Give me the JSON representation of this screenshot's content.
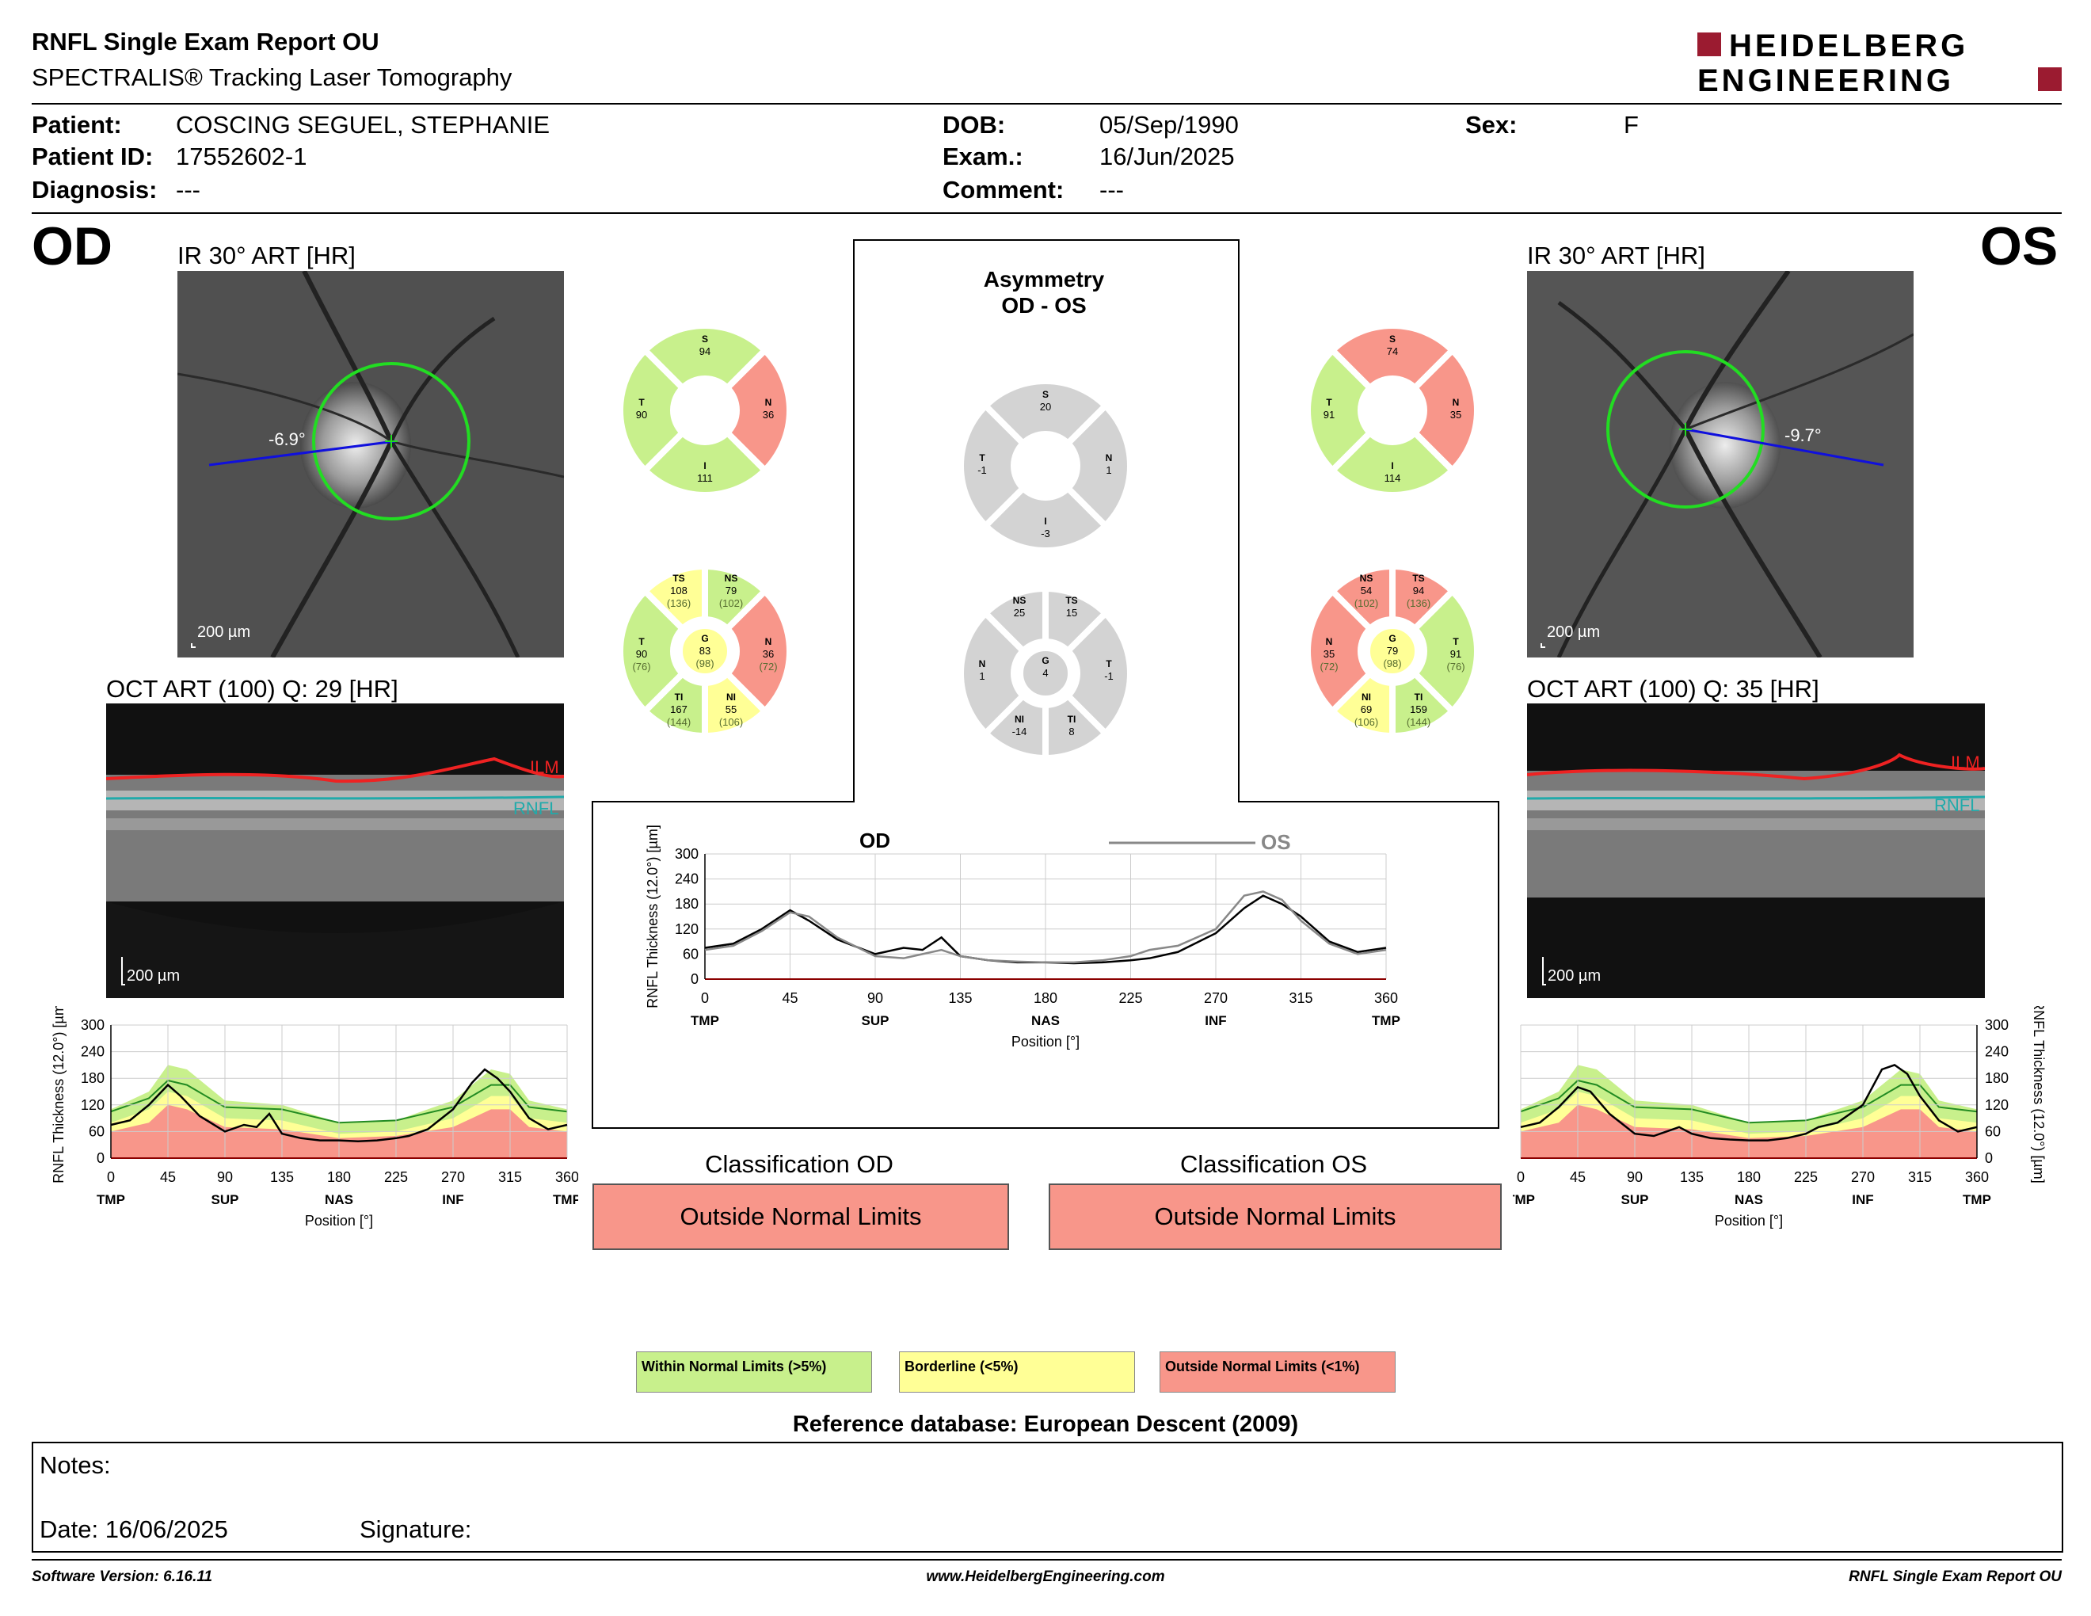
{
  "header": {
    "title": "RNFL Single Exam Report OU",
    "subtitle": "SPECTRALIS® Tracking Laser Tomography",
    "logo_line1": "HEIDELBERG",
    "logo_line2": "ENGINEERING"
  },
  "patient": {
    "patient_label": "Patient:",
    "patient_value": "COSCING SEGUEL, STEPHANIE",
    "id_label": "Patient ID:",
    "id_value": "17552602-1",
    "diagnosis_label": "Diagnosis:",
    "diagnosis_value": "---",
    "dob_label": "DOB:",
    "dob_value": "05/Sep/1990",
    "exam_label": "Exam.:",
    "exam_value": "16/Jun/2025",
    "comment_label": "Comment:",
    "comment_value": "---",
    "sex_label": "Sex:",
    "sex_value": "F"
  },
  "od": {
    "eye": "OD",
    "ir_label": "IR 30° ART [HR]",
    "angle": "-6.9°",
    "scale_ir": "200 µm",
    "oct_label": "OCT ART (100) Q: 29 [HR]",
    "scale_oct": "200 µm",
    "ilm": "ILM",
    "rnfl": "RNFL",
    "sectors4": {
      "S": "94",
      "N": "36",
      "I": "111",
      "T": "90"
    },
    "sectors6": {
      "TS": "108",
      "TS_ref": "(136)",
      "NS": "79",
      "NS_ref": "(102)",
      "N": "36",
      "N_ref": "(72)",
      "NI": "55",
      "NI_ref": "(106)",
      "TI": "167",
      "TI_ref": "(144)",
      "T": "90",
      "T_ref": "(76)",
      "G": "83",
      "G_ref": "(98)"
    },
    "classification_title": "Classification OD",
    "classification": "Outside Normal Limits"
  },
  "os": {
    "eye": "OS",
    "ir_label": "IR 30° ART [HR]",
    "angle": "-9.7°",
    "scale_ir": "200 µm",
    "oct_label": "OCT ART (100) Q: 35 [HR]",
    "scale_oct": "200 µm",
    "ilm": "ILM",
    "rnfl": "RNFL",
    "sectors4": {
      "S": "74",
      "N": "35",
      "I": "114",
      "T": "91"
    },
    "sectors6": {
      "NS": "54",
      "NS_ref": "(102)",
      "TS": "94",
      "TS_ref": "(136)",
      "T": "91",
      "T_ref": "(76)",
      "TI": "159",
      "TI_ref": "(144)",
      "NI": "69",
      "NI_ref": "(106)",
      "N": "35",
      "N_ref": "(72)",
      "G": "79",
      "G_ref": "(98)"
    },
    "classification_title": "Classification OS",
    "classification": "Outside Normal Limits"
  },
  "asymmetry": {
    "title1": "Asymmetry",
    "title2": "OD - OS",
    "sectors4": {
      "S": "20",
      "N": "1",
      "T": "-1",
      "I": "-3"
    },
    "sectors6": {
      "NS": "25",
      "TS": "15",
      "N": "1",
      "G": "4",
      "T": "-1",
      "NI": "-14",
      "TI": "8"
    }
  },
  "colors": {
    "green": "#c8f08c",
    "yellow": "#ffff96",
    "red": "#f8968a",
    "gray": "#d3d3d3"
  },
  "chart_data": [
    {
      "type": "line",
      "title": "",
      "ylabel": "RNFL Thickness (12.0°) [µm]",
      "xlabel": "Position [°]",
      "ylim": [
        0,
        300
      ],
      "xlim": [
        0,
        360
      ],
      "x_ticks": [
        "0",
        "45",
        "90",
        "135",
        "180",
        "225",
        "270",
        "315",
        "360"
      ],
      "y_ticks": [
        "0",
        "60",
        "120",
        "180",
        "240",
        "300"
      ],
      "region_labels": [
        "TMP",
        "SUP",
        "NAS",
        "INF",
        "TMP"
      ],
      "series": [
        {
          "name": "OD",
          "x": [
            0,
            15,
            30,
            45,
            55,
            70,
            90,
            105,
            115,
            125,
            135,
            150,
            165,
            180,
            195,
            210,
            225,
            235,
            250,
            270,
            285,
            295,
            305,
            315,
            330,
            345,
            360
          ],
          "values": [
            75,
            85,
            120,
            165,
            140,
            95,
            60,
            75,
            70,
            100,
            55,
            45,
            40,
            40,
            38,
            40,
            45,
            50,
            65,
            110,
            170,
            200,
            180,
            150,
            90,
            65,
            75
          ]
        },
        {
          "name": "OS",
          "x": [
            0,
            15,
            30,
            45,
            55,
            70,
            90,
            105,
            115,
            125,
            135,
            150,
            165,
            180,
            195,
            210,
            225,
            235,
            250,
            270,
            285,
            295,
            305,
            315,
            330,
            345,
            360
          ],
          "values": [
            70,
            80,
            115,
            160,
            150,
            100,
            55,
            50,
            60,
            70,
            55,
            45,
            42,
            40,
            40,
            45,
            55,
            70,
            80,
            120,
            200,
            210,
            190,
            140,
            85,
            60,
            70
          ]
        }
      ]
    },
    {
      "type": "line",
      "ylabel": "RNFL Thickness (12.0°) [µm]",
      "xlabel": "Position [°]",
      "ylim": [
        0,
        300
      ],
      "xlim": [
        0,
        360
      ],
      "x_ticks": [
        "0",
        "45",
        "90",
        "135",
        "180",
        "225",
        "270",
        "315",
        "360"
      ],
      "y_ticks": [
        "0",
        "60",
        "120",
        "180",
        "240",
        "300"
      ],
      "region_labels": [
        "TMP",
        "SUP",
        "NAS",
        "INF",
        "TMP"
      ],
      "series": [
        {
          "name": "OD",
          "x": [
            0,
            15,
            30,
            45,
            55,
            70,
            90,
            105,
            115,
            125,
            135,
            150,
            165,
            180,
            195,
            210,
            225,
            235,
            250,
            270,
            285,
            295,
            305,
            315,
            330,
            345,
            360
          ],
          "values": [
            75,
            85,
            120,
            165,
            140,
            95,
            60,
            75,
            70,
            100,
            55,
            45,
            40,
            40,
            38,
            40,
            45,
            50,
            65,
            110,
            170,
            200,
            180,
            150,
            90,
            65,
            75
          ]
        }
      ]
    },
    {
      "type": "line",
      "ylabel": "RNFL Thickness (12.0°) [µm]",
      "xlabel": "Position [°]",
      "ylim": [
        0,
        300
      ],
      "xlim": [
        0,
        360
      ],
      "x_ticks": [
        "0",
        "45",
        "90",
        "135",
        "180",
        "225",
        "270",
        "315",
        "360"
      ],
      "y_ticks": [
        "0",
        "60",
        "120",
        "180",
        "240",
        "300"
      ],
      "region_labels": [
        "TMP",
        "SUP",
        "NAS",
        "INF",
        "TMP"
      ],
      "series": [
        {
          "name": "OS",
          "x": [
            0,
            15,
            30,
            45,
            55,
            70,
            90,
            105,
            115,
            125,
            135,
            150,
            165,
            180,
            195,
            210,
            225,
            235,
            250,
            270,
            285,
            295,
            305,
            315,
            330,
            345,
            360
          ],
          "values": [
            70,
            80,
            115,
            160,
            150,
            100,
            55,
            50,
            60,
            70,
            55,
            45,
            42,
            40,
            40,
            45,
            55,
            70,
            80,
            120,
            200,
            210,
            190,
            140,
            85,
            60,
            70
          ]
        }
      ]
    }
  ],
  "legend": {
    "within": "Within Normal Limits (>5%)",
    "borderline": "Borderline (<5%)",
    "outside": "Outside Normal Limits (<1%)"
  },
  "reference": "Reference database: European Descent (2009)",
  "notes": {
    "notes_label": "Notes:",
    "date": "Date: 16/06/2025",
    "signature": "Signature:"
  },
  "footer": {
    "software": "Software Version: 6.16.11",
    "website": "www.HeidelbergEngineering.com",
    "report": "RNFL Single Exam Report OU"
  }
}
